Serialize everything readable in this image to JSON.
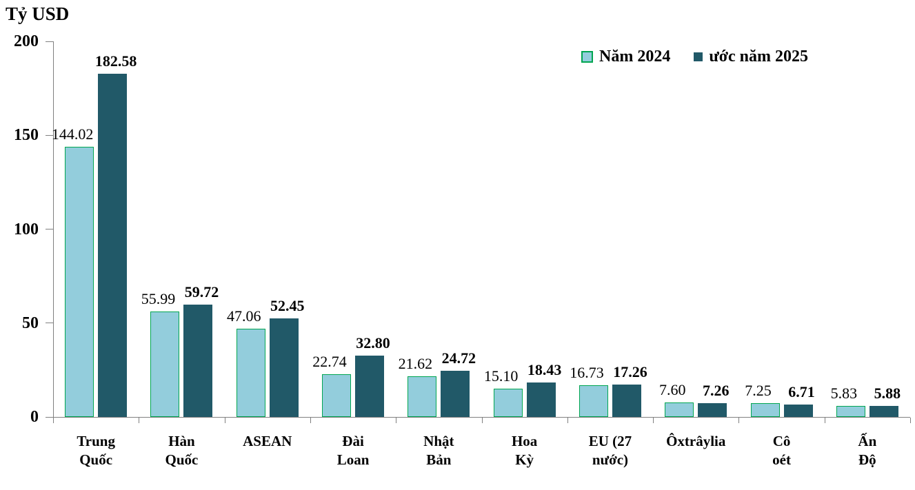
{
  "chart": {
    "title": "Tỷ USD",
    "legend": [
      "Năm 2024",
      "ước năm 2025"
    ]
  },
  "chart_data": {
    "type": "bar",
    "title": "Tỷ USD",
    "ylabel": "Tỷ USD",
    "xlabel": "",
    "categories": [
      "Trung Quốc",
      "Hàn Quốc",
      "ASEAN",
      "Đài Loan",
      "Nhật Bản",
      "Hoa Kỳ",
      "EU (27 nước)",
      "Ôxtrâylia",
      "Cô oét",
      "Ấn Độ"
    ],
    "category_lines": [
      [
        "Trung",
        "Quốc"
      ],
      [
        "Hàn",
        "Quốc"
      ],
      [
        "ASEAN"
      ],
      [
        "Đài",
        "Loan"
      ],
      [
        "Nhật",
        "Bản"
      ],
      [
        "Hoa",
        "Kỳ"
      ],
      [
        "EU (27",
        "nước)"
      ],
      [
        "Ôxtrâylia"
      ],
      [
        "Cô",
        "oét"
      ],
      [
        "Ấn",
        "Độ"
      ]
    ],
    "series": [
      {
        "name": "Năm 2024",
        "values": [
          144.02,
          55.99,
          47.06,
          22.74,
          21.62,
          15.1,
          16.73,
          7.6,
          7.25,
          5.83
        ],
        "fill": "#93CDDC",
        "border": "#00A550",
        "label_weight": "normal"
      },
      {
        "name": "ước năm 2025",
        "values": [
          182.58,
          59.72,
          52.45,
          32.8,
          24.72,
          18.43,
          17.26,
          7.26,
          6.71,
          5.88
        ],
        "fill": "#215968",
        "border": "#215968",
        "label_weight": "bold"
      }
    ],
    "ylim": [
      0,
      200
    ],
    "yticks": [
      0,
      50,
      100,
      150,
      200
    ],
    "grid": false,
    "legend_position": "top-right",
    "axis_color": "#7F7F7F",
    "value_label_decimals": 2
  }
}
